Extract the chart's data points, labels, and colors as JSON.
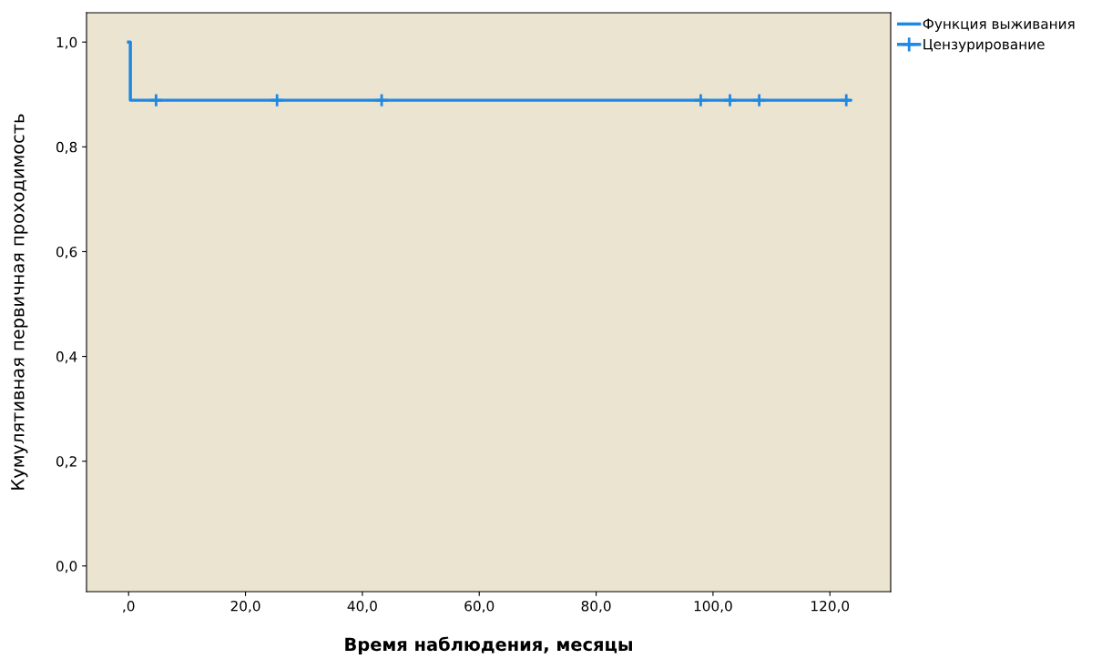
{
  "chart_data": {
    "type": "step",
    "xlabel": "Время наблюдения, месяцы",
    "ylabel": "Кумулятивная первичная проходимость",
    "series": [
      {
        "name": "Функция выживания",
        "color": "#1e88e5",
        "x": [
          0,
          0.3,
          123.3
        ],
        "values": [
          1.0,
          0.889,
          0.889
        ]
      },
      {
        "name": "Цензурирование",
        "type": "scatter",
        "marker": "cross",
        "color": "#1e88e5",
        "x": [
          4.7,
          25.4,
          43.3,
          97.9,
          102.9,
          107.9,
          122.8
        ],
        "values": [
          0.889,
          0.889,
          0.889,
          0.889,
          0.889,
          0.889,
          0.889
        ]
      }
    ],
    "xlim": [
      -7.2,
      130.4
    ],
    "ylim": [
      -0.049,
      1.056
    ],
    "xticks": [
      {
        "value": 0,
        "label": ",0"
      },
      {
        "value": 20,
        "label": "20,0"
      },
      {
        "value": 40,
        "label": "40,0"
      },
      {
        "value": 60,
        "label": "60,0"
      },
      {
        "value": 80,
        "label": "80,0"
      },
      {
        "value": 100,
        "label": "100,0"
      },
      {
        "value": 120,
        "label": "120,0"
      }
    ],
    "yticks": [
      {
        "value": 0,
        "label": "0,0"
      },
      {
        "value": 0.2,
        "label": "0,2"
      },
      {
        "value": 0.4,
        "label": "0,4"
      },
      {
        "value": 0.6,
        "label": "0,6"
      },
      {
        "value": 0.8,
        "label": "0,8"
      },
      {
        "value": 1.0,
        "label": "1,0"
      }
    ],
    "legend": "top right",
    "grid": false
  }
}
